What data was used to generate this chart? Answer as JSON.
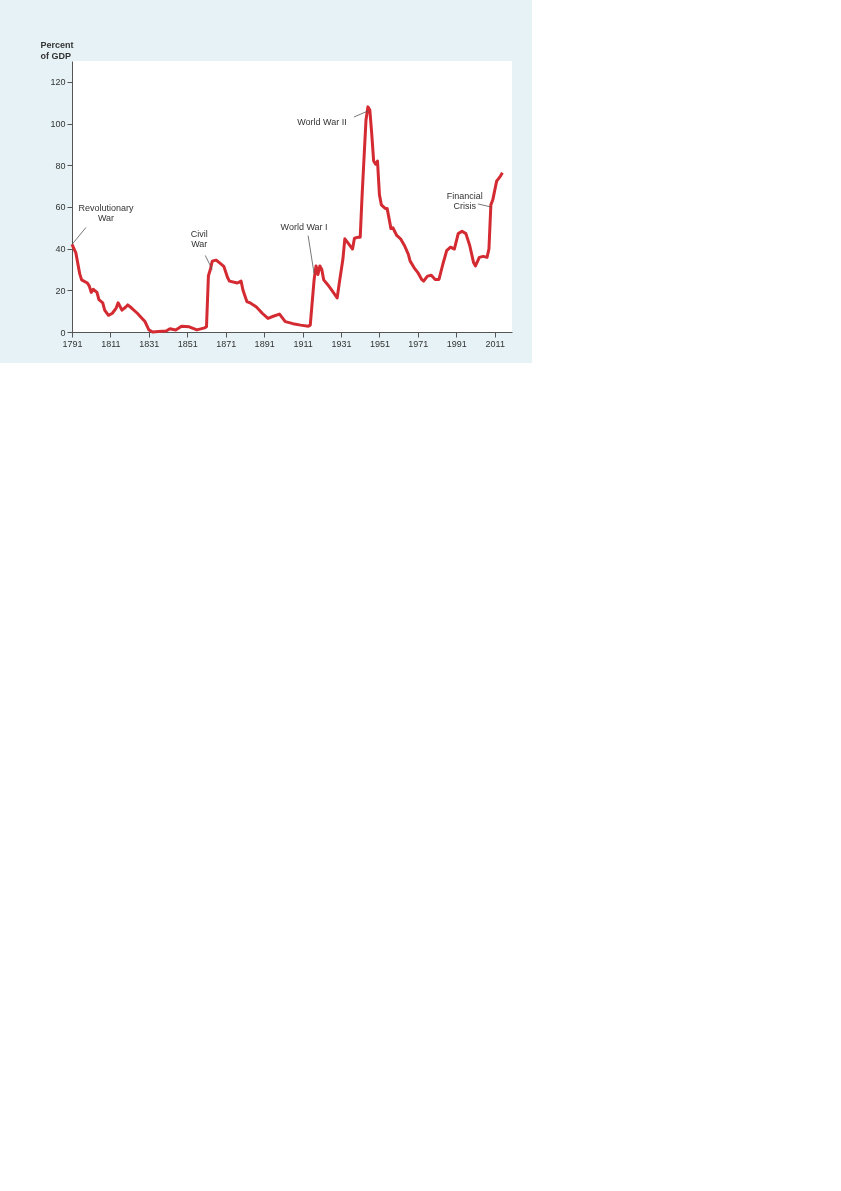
{
  "chart_data": {
    "type": "line",
    "ylabel": "Percent of GDP",
    "x": [
      1791,
      1793,
      1795,
      1796,
      1799,
      1800,
      1801,
      1802,
      1804,
      1805,
      1807,
      1808,
      1810,
      1812,
      1814,
      1815,
      1817,
      1819,
      1820,
      1822,
      1825,
      1827,
      1829,
      1831,
      1833,
      1836,
      1840,
      1842,
      1845,
      1848,
      1852,
      1856,
      1860,
      1861,
      1862,
      1863,
      1864,
      1866,
      1868,
      1870,
      1872,
      1873,
      1877,
      1879,
      1880,
      1882,
      1884,
      1887,
      1890,
      1893,
      1895,
      1899,
      1902,
      1906,
      1910,
      1914,
      1915,
      1917,
      1918,
      1919,
      1920,
      1921,
      1922,
      1924,
      1926,
      1929,
      1930,
      1932,
      1933,
      1935,
      1937,
      1938,
      1940,
      1941,
      1942,
      1944,
      1945,
      1946,
      1947,
      1948,
      1949,
      1950,
      1951,
      1952,
      1954,
      1955,
      1956,
      1957,
      1958,
      1960,
      1962,
      1964,
      1966,
      1967,
      1969,
      1971,
      1973,
      1974,
      1976,
      1978,
      1980,
      1982,
      1984,
      1986,
      1988,
      1990,
      1992,
      1994,
      1996,
      1998,
      2000,
      2001,
      2003,
      2005,
      2007,
      2008,
      2009,
      2010,
      2012,
      2014,
      2015
    ],
    "series": [
      {
        "color": "#d42a32",
        "values": [
          42,
          38,
          28,
          25,
          23.5,
          22,
          19,
          20.5,
          19,
          15.5,
          14,
          10.5,
          8,
          9,
          11.5,
          14,
          10.5,
          12,
          13,
          11.5,
          9,
          7,
          5,
          1,
          0,
          0.2,
          0.5,
          1.6,
          1,
          2.8,
          2.5,
          1,
          2,
          2.5,
          27,
          30,
          34,
          34.5,
          33,
          31.5,
          26,
          24.4,
          23.5,
          24.4,
          20,
          14.6,
          13.8,
          12,
          9,
          6.5,
          7.3,
          8.6,
          5,
          4,
          3.3,
          2.8,
          3.3,
          25,
          31.7,
          27.6,
          31.7,
          30,
          25,
          22.8,
          20.3,
          16.3,
          22.8,
          35,
          44.7,
          42.3,
          39.8,
          45,
          45.5,
          45.5,
          65.9,
          101.6,
          108,
          106.5,
          95,
          82,
          80.5,
          82,
          65.9,
          61,
          59.3,
          59.3,
          54.5,
          49.6,
          50,
          46.3,
          44.7,
          41.5,
          37.4,
          34,
          30.9,
          28.5,
          25.2,
          24.4,
          26.8,
          27.2,
          25.2,
          25.2,
          32.5,
          39,
          40.7,
          39.8,
          47.2,
          48.3,
          47.2,
          41.5,
          33.3,
          31.7,
          35.8,
          36.3,
          35.8,
          39.8,
          61,
          63.4,
          72.4,
          74.8,
          76.4
        ]
      }
    ],
    "xlim": [
      1791,
      2020
    ],
    "ylim": [
      0,
      130
    ],
    "xticks": [
      1791,
      1811,
      1831,
      1851,
      1871,
      1891,
      1911,
      1931,
      1951,
      1971,
      1991,
      2011
    ],
    "yticks": [
      0,
      20,
      40,
      60,
      80,
      100,
      120
    ],
    "grid": false,
    "marker": "none",
    "line_style": "solid",
    "annotations": [
      {
        "text": "Revolutionary War",
        "x": 1791,
        "y": 42
      },
      {
        "text": "Civil War",
        "x": 1864,
        "y": 30
      },
      {
        "text": "World War I",
        "x": 1917,
        "y": 28
      },
      {
        "text": "World War II",
        "x": 1945,
        "y": 106
      },
      {
        "text": "Financial Crisis",
        "x": 2009,
        "y": 60
      }
    ]
  }
}
